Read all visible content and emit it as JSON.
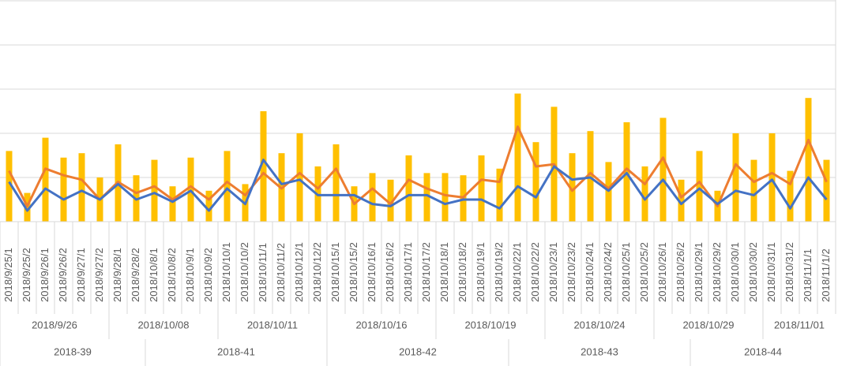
{
  "chart_data": {
    "type": "bar-line",
    "categories": [
      "2018/9/25/1",
      "2018/9/25/2",
      "2018/9/26/1",
      "2018/9/26/2",
      "2018/9/27/1",
      "2018/9/27/2",
      "2018/9/28/1",
      "2018/9/28/2",
      "2018/10/8/1",
      "2018/10/8/2",
      "2018/10/9/1",
      "2018/10/9/2",
      "2018/10/10/1",
      "2018/10/10/2",
      "2018/10/11/1",
      "2018/10/11/2",
      "2018/10/12/1",
      "2018/10/12/2",
      "2018/10/15/1",
      "2018/10/15/2",
      "2018/10/16/1",
      "2018/10/16/2",
      "2018/10/17/1",
      "2018/10/17/2",
      "2018/10/18/1",
      "2018/10/18/2",
      "2018/10/19/1",
      "2018/10/19/2",
      "2018/10/22/1",
      "2018/10/22/2",
      "2018/10/23/1",
      "2018/10/23/2",
      "2018/10/24/1",
      "2018/10/24/2",
      "2018/10/25/1",
      "2018/10/25/2",
      "2018/10/26/1",
      "2018/10/26/2",
      "2018/10/29/1",
      "2018/10/29/2",
      "2018/10/30/1",
      "2018/10/30/2",
      "2018/10/31/1",
      "2018/10/31/2",
      "2018/11/1/1",
      "2018/11/1/2"
    ],
    "groups": [
      {
        "label": "2018/9/26",
        "count": 6
      },
      {
        "label": "2018/10/08",
        "count": 6
      },
      {
        "label": "2018/10/11",
        "count": 6
      },
      {
        "label": "2018/10/16",
        "count": 6
      },
      {
        "label": "2018/10/19",
        "count": 6
      },
      {
        "label": "2018/10/24",
        "count": 6
      },
      {
        "label": "2018/10/29",
        "count": 6
      },
      {
        "label": "2018/11/01",
        "count": 4
      }
    ],
    "weeks": [
      {
        "label": "2018-39",
        "count": 8
      },
      {
        "label": "2018-41",
        "count": 10
      },
      {
        "label": "2018-42",
        "count": 10
      },
      {
        "label": "2018-43",
        "count": 10
      },
      {
        "label": "2018-44",
        "count": 8
      }
    ],
    "series": [
      {
        "kind": "bar",
        "color": "#ffc000",
        "values": [
          1.6,
          0.65,
          1.9,
          1.45,
          1.55,
          1.0,
          1.75,
          1.05,
          1.4,
          0.8,
          1.45,
          0.7,
          1.6,
          0.85,
          2.5,
          1.55,
          2.0,
          1.25,
          1.75,
          0.8,
          1.1,
          0.95,
          1.5,
          1.1,
          1.1,
          1.05,
          1.5,
          1.2,
          2.9,
          1.8,
          2.6,
          1.55,
          2.05,
          1.35,
          2.25,
          1.25,
          2.35,
          0.95,
          1.6,
          0.7,
          2.0,
          1.4,
          2.0,
          1.15,
          2.8,
          1.4
        ]
      },
      {
        "kind": "line",
        "color": "#ed7d31",
        "values": [
          1.15,
          0.35,
          1.2,
          1.05,
          0.95,
          0.5,
          0.9,
          0.65,
          0.8,
          0.5,
          0.8,
          0.5,
          0.9,
          0.6,
          1.1,
          0.75,
          1.1,
          0.75,
          1.2,
          0.4,
          0.75,
          0.4,
          0.95,
          0.75,
          0.6,
          0.55,
          0.95,
          0.9,
          2.15,
          1.25,
          1.3,
          0.7,
          1.1,
          0.75,
          1.2,
          0.85,
          1.45,
          0.55,
          0.9,
          0.35,
          1.3,
          0.9,
          1.1,
          0.85,
          1.85,
          0.9
        ]
      },
      {
        "kind": "line",
        "color": "#4472c4",
        "values": [
          0.9,
          0.25,
          0.75,
          0.5,
          0.7,
          0.5,
          0.85,
          0.5,
          0.65,
          0.45,
          0.7,
          0.25,
          0.75,
          0.4,
          1.4,
          0.85,
          0.95,
          0.6,
          0.6,
          0.6,
          0.4,
          0.35,
          0.6,
          0.6,
          0.4,
          0.5,
          0.5,
          0.3,
          0.8,
          0.55,
          1.25,
          0.95,
          1.0,
          0.7,
          1.1,
          0.5,
          0.95,
          0.4,
          0.75,
          0.4,
          0.7,
          0.6,
          0.95,
          0.3,
          1.0,
          0.5
        ]
      }
    ],
    "ylim": [
      0,
      5
    ],
    "yticks": [
      0,
      1,
      2,
      3,
      4,
      5
    ],
    "grid": true
  }
}
